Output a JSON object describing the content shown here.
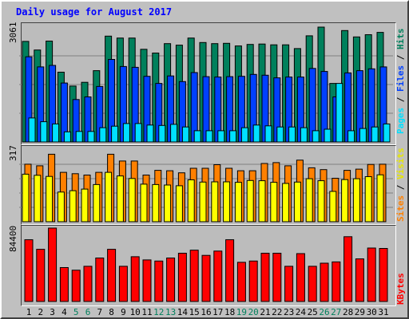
{
  "title": "Daily usage for August 2017",
  "colors": {
    "hits": "#00805c",
    "files": "#0040ff",
    "pages": "#00e0ff",
    "visits": "#ffff00",
    "sites": "#ff8000",
    "kbytes": "#ff0000",
    "weekday": "#000000",
    "weekend": "#00805c",
    "grid": "#808080"
  },
  "chart_data": [
    {
      "type": "bar",
      "x": [
        1,
        2,
        3,
        4,
        5,
        6,
        7,
        8,
        9,
        10,
        11,
        12,
        13,
        14,
        15,
        16,
        17,
        18,
        19,
        20,
        21,
        22,
        23,
        24,
        25,
        26,
        27,
        28,
        29,
        30,
        31
      ],
      "ymax_label": "3061",
      "ylim": [
        0,
        3061
      ],
      "grid": true,
      "series": [
        {
          "name": "Hits",
          "color": "#00805c",
          "values": [
            2680,
            2450,
            2690,
            1860,
            1490,
            1590,
            1900,
            2820,
            2770,
            2770,
            2470,
            2370,
            2620,
            2580,
            2770,
            2650,
            2620,
            2630,
            2560,
            2600,
            2610,
            2590,
            2590,
            2490,
            2830,
            3061,
            1560,
            2970,
            2800,
            2860,
            2920
          ]
        },
        {
          "name": "Files",
          "color": "#0040ff",
          "values": [
            2270,
            2000,
            2040,
            1570,
            1130,
            1200,
            1480,
            2200,
            2010,
            1990,
            1750,
            1560,
            1760,
            1610,
            1850,
            1740,
            1730,
            1740,
            1750,
            1800,
            1780,
            1710,
            1730,
            1730,
            1960,
            1880,
            1200,
            1840,
            1900,
            1950,
            2000
          ]
        },
        {
          "name": "Pages",
          "color": "#00e0ff",
          "values": [
            640,
            540,
            480,
            270,
            280,
            280,
            380,
            420,
            490,
            490,
            450,
            440,
            470,
            400,
            300,
            300,
            300,
            300,
            380,
            450,
            430,
            400,
            400,
            380,
            300,
            340,
            1560,
            300,
            360,
            400,
            480
          ]
        }
      ]
    },
    {
      "type": "bar",
      "x": [
        1,
        2,
        3,
        4,
        5,
        6,
        7,
        8,
        9,
        10,
        11,
        12,
        13,
        14,
        15,
        16,
        17,
        18,
        19,
        20,
        21,
        22,
        23,
        24,
        25,
        26,
        27,
        28,
        29,
        30,
        31
      ],
      "ymax_label": "317",
      "ylim": [
        0,
        317
      ],
      "grid": true,
      "series": [
        {
          "name": "Sites",
          "color": "#ff8000",
          "values": [
            254,
            247,
            298,
            218,
            212,
            206,
            218,
            298,
            268,
            268,
            206,
            227,
            225,
            216,
            236,
            236,
            252,
            236,
            225,
            225,
            257,
            261,
            247,
            272,
            238,
            230,
            192,
            227,
            232,
            253,
            254
          ]
        },
        {
          "name": "Visits",
          "color": "#ffff00",
          "values": [
            210,
            205,
            200,
            131,
            137,
            144,
            164,
            218,
            202,
            191,
            166,
            164,
            162,
            159,
            185,
            175,
            176,
            176,
            174,
            182,
            181,
            174,
            169,
            175,
            190,
            181,
            134,
            186,
            190,
            199,
            207
          ]
        }
      ]
    },
    {
      "type": "bar",
      "x": [
        1,
        2,
        3,
        4,
        5,
        6,
        7,
        8,
        9,
        10,
        11,
        12,
        13,
        14,
        15,
        16,
        17,
        18,
        19,
        20,
        21,
        22,
        23,
        24,
        25,
        26,
        27,
        28,
        29,
        30,
        31
      ],
      "ymax_label": "84400",
      "ylim": [
        0,
        84400
      ],
      "grid": true,
      "series": [
        {
          "name": "KBytes",
          "color": "#ff0000",
          "values": [
            71000,
            60000,
            84400,
            39000,
            36000,
            40500,
            50000,
            60000,
            40500,
            51500,
            47800,
            46500,
            50000,
            55500,
            59000,
            53000,
            58000,
            71000,
            45000,
            46500,
            55500,
            55500,
            40500,
            55000,
            40500,
            44000,
            45500,
            74500,
            49000,
            61500,
            61000
          ]
        }
      ]
    }
  ],
  "right_labels": {
    "top": [
      {
        "text": "Pages",
        "color": "#00e0ff"
      },
      {
        "text": " / ",
        "color": "#000000"
      },
      {
        "text": "Files",
        "color": "#0040ff"
      },
      {
        "text": " / ",
        "color": "#000000"
      },
      {
        "text": "Hits",
        "color": "#00805c"
      }
    ],
    "middle": [
      {
        "text": "Sites",
        "color": "#ff8000"
      },
      {
        "text": " / ",
        "color": "#000000"
      },
      {
        "text": "Visits",
        "color": "#e6e600"
      }
    ],
    "bottom": [
      {
        "text": "KBytes",
        "color": "#ff0000"
      }
    ]
  },
  "weekend_days": [
    5,
    6,
    12,
    13,
    19,
    20,
    26,
    27
  ]
}
